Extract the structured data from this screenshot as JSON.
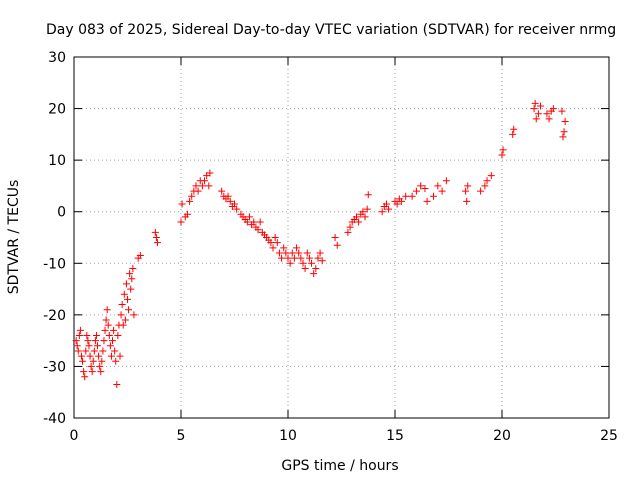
{
  "chart_data": {
    "type": "scatter",
    "title": "Day 083 of 2025, Sidereal Day-to-day VTEC variation (SDTVAR) for receiver nrmg",
    "xlabel": "GPS time / hours",
    "ylabel": "SDTVAR / TECUs",
    "xlim": [
      0,
      25
    ],
    "ylim": [
      -40,
      30
    ],
    "xticks": [
      0,
      5,
      10,
      15,
      20,
      25
    ],
    "yticks": [
      -40,
      -30,
      -20,
      -10,
      0,
      10,
      20,
      30
    ],
    "grid": true,
    "marker": "+",
    "color": "#ff0000",
    "series": [
      {
        "name": "SDTVAR",
        "points": [
          [
            0.1,
            -25
          ],
          [
            0.15,
            -26
          ],
          [
            0.2,
            -27
          ],
          [
            0.25,
            -24
          ],
          [
            0.3,
            -23
          ],
          [
            0.35,
            -28
          ],
          [
            0.4,
            -29
          ],
          [
            0.45,
            -31
          ],
          [
            0.5,
            -32
          ],
          [
            0.55,
            -27
          ],
          [
            0.6,
            -24
          ],
          [
            0.65,
            -25
          ],
          [
            0.7,
            -26
          ],
          [
            0.75,
            -28
          ],
          [
            0.8,
            -30
          ],
          [
            0.85,
            -31
          ],
          [
            0.9,
            -29
          ],
          [
            0.95,
            -27
          ],
          [
            1.0,
            -25
          ],
          [
            1.05,
            -24
          ],
          [
            1.1,
            -26
          ],
          [
            1.15,
            -28
          ],
          [
            1.2,
            -30
          ],
          [
            1.25,
            -31
          ],
          [
            1.3,
            -29
          ],
          [
            1.35,
            -27
          ],
          [
            1.4,
            -25
          ],
          [
            1.45,
            -23
          ],
          [
            1.5,
            -21
          ],
          [
            1.55,
            -19
          ],
          [
            1.6,
            -22
          ],
          [
            1.65,
            -24
          ],
          [
            1.7,
            -26
          ],
          [
            1.75,
            -28
          ],
          [
            1.8,
            -25
          ],
          [
            1.85,
            -23
          ],
          [
            1.9,
            -27
          ],
          [
            1.95,
            -29
          ],
          [
            2.0,
            -33.5
          ],
          [
            2.05,
            -24
          ],
          [
            2.1,
            -22
          ],
          [
            2.15,
            -28
          ],
          [
            2.2,
            -20
          ],
          [
            2.25,
            -18
          ],
          [
            2.3,
            -22
          ],
          [
            2.35,
            -16
          ],
          [
            2.4,
            -21
          ],
          [
            2.45,
            -14
          ],
          [
            2.5,
            -17
          ],
          [
            2.55,
            -19
          ],
          [
            2.6,
            -12
          ],
          [
            2.65,
            -15
          ],
          [
            2.7,
            -13
          ],
          [
            2.75,
            -11
          ],
          [
            2.8,
            -20
          ],
          [
            3.0,
            -9
          ],
          [
            3.1,
            -8.5
          ],
          [
            3.8,
            -4
          ],
          [
            3.85,
            -5
          ],
          [
            3.9,
            -6
          ],
          [
            5.0,
            -2
          ],
          [
            5.05,
            1.5
          ],
          [
            5.2,
            -1
          ],
          [
            5.3,
            -0.5
          ],
          [
            5.4,
            2
          ],
          [
            5.5,
            3
          ],
          [
            5.6,
            4
          ],
          [
            5.7,
            5
          ],
          [
            5.8,
            4
          ],
          [
            5.9,
            6
          ],
          [
            6.0,
            5
          ],
          [
            6.1,
            6
          ],
          [
            6.2,
            7
          ],
          [
            6.3,
            5
          ],
          [
            6.35,
            7.5
          ],
          [
            6.9,
            4
          ],
          [
            7.0,
            3
          ],
          [
            7.1,
            2.5
          ],
          [
            7.2,
            3
          ],
          [
            7.3,
            2
          ],
          [
            7.4,
            1
          ],
          [
            7.5,
            1.5
          ],
          [
            7.6,
            0.5
          ],
          [
            7.8,
            -0.5
          ],
          [
            7.9,
            -1
          ],
          [
            8.0,
            -1.5
          ],
          [
            8.1,
            -2
          ],
          [
            8.2,
            -1
          ],
          [
            8.3,
            -2.5
          ],
          [
            8.4,
            -2
          ],
          [
            8.5,
            -3
          ],
          [
            8.6,
            -3.5
          ],
          [
            8.7,
            -2
          ],
          [
            8.8,
            -4
          ],
          [
            8.9,
            -4.5
          ],
          [
            9.0,
            -5
          ],
          [
            9.1,
            -5.5
          ],
          [
            9.2,
            -6
          ],
          [
            9.3,
            -7
          ],
          [
            9.4,
            -5
          ],
          [
            9.5,
            -6
          ],
          [
            9.6,
            -8
          ],
          [
            9.7,
            -9
          ],
          [
            9.8,
            -7
          ],
          [
            9.9,
            -8
          ],
          [
            10.0,
            -9
          ],
          [
            10.1,
            -10
          ],
          [
            10.2,
            -8
          ],
          [
            10.3,
            -9
          ],
          [
            10.4,
            -7
          ],
          [
            10.5,
            -8
          ],
          [
            10.6,
            -9
          ],
          [
            10.7,
            -10
          ],
          [
            10.8,
            -11
          ],
          [
            10.9,
            -8
          ],
          [
            11.0,
            -9
          ],
          [
            11.1,
            -10
          ],
          [
            11.2,
            -12
          ],
          [
            11.3,
            -11
          ],
          [
            11.4,
            -9
          ],
          [
            11.5,
            -8
          ],
          [
            11.6,
            -9.5
          ],
          [
            12.2,
            -5
          ],
          [
            12.3,
            -6.5
          ],
          [
            12.8,
            -4
          ],
          [
            12.9,
            -3
          ],
          [
            13.0,
            -2
          ],
          [
            13.1,
            -1.5
          ],
          [
            13.2,
            -1
          ],
          [
            13.3,
            -2
          ],
          [
            13.4,
            -0.5
          ],
          [
            13.5,
            0
          ],
          [
            13.6,
            -1
          ],
          [
            13.7,
            0.5
          ],
          [
            13.75,
            3.3
          ],
          [
            14.4,
            0
          ],
          [
            14.5,
            1
          ],
          [
            14.6,
            1.5
          ],
          [
            14.7,
            0.5
          ],
          [
            15.0,
            2
          ],
          [
            15.1,
            1.5
          ],
          [
            15.2,
            2.5
          ],
          [
            15.3,
            2
          ],
          [
            15.5,
            3
          ],
          [
            15.8,
            3
          ],
          [
            16.0,
            4
          ],
          [
            16.2,
            5
          ],
          [
            16.4,
            4.5
          ],
          [
            16.5,
            2
          ],
          [
            16.8,
            3
          ],
          [
            17.0,
            5
          ],
          [
            17.2,
            4
          ],
          [
            17.4,
            6
          ],
          [
            18.3,
            4
          ],
          [
            18.35,
            2
          ],
          [
            18.4,
            5
          ],
          [
            19.0,
            4
          ],
          [
            19.2,
            5
          ],
          [
            19.3,
            6
          ],
          [
            19.5,
            7
          ],
          [
            20.0,
            11
          ],
          [
            20.05,
            12
          ],
          [
            20.5,
            15
          ],
          [
            20.55,
            16
          ],
          [
            21.5,
            20
          ],
          [
            21.55,
            21
          ],
          [
            21.6,
            18
          ],
          [
            21.7,
            19
          ],
          [
            21.8,
            20.5
          ],
          [
            22.1,
            19
          ],
          [
            22.2,
            18
          ],
          [
            22.3,
            19.5
          ],
          [
            22.4,
            20
          ],
          [
            22.8,
            19.5
          ],
          [
            22.85,
            14.5
          ],
          [
            22.9,
            15.5
          ],
          [
            22.95,
            17.5
          ]
        ]
      }
    ]
  }
}
